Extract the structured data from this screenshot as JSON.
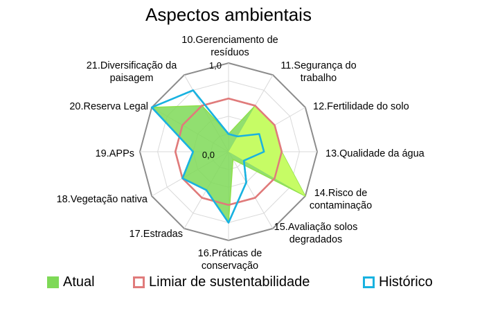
{
  "chart_data": {
    "type": "radar",
    "title": "Aspectos ambientais",
    "categories": [
      "10.Gerenciamento de resíduos",
      "11.Segurança do trabalho",
      "12.Fertilidade do solo",
      "13.Qualidade da água",
      "14.Risco de contaminação",
      "15.Avaliação solos degradados",
      "16.Práticas de conservação",
      "17.Estradas",
      "18.Vegetação nativa",
      "19.APPs",
      "20.Reserva Legal",
      "21.Diversificação da paisagem"
    ],
    "radial_range": [
      0,
      1
    ],
    "tick_labels": [
      "0,0",
      "1,0"
    ],
    "grid_rings": 5,
    "legend_position": "bottom",
    "series": [
      {
        "name": "Atual",
        "values": [
          0.2,
          0.6,
          0.6,
          0.6,
          1.0,
          0.1,
          0.8,
          0.5,
          0.6,
          0.4,
          1.0,
          0.6
        ],
        "fill": "#7ed957",
        "stroke": "#8fe04a",
        "segment_fill": "#ccff66"
      },
      {
        "name": "Limiar de sustentabilidade",
        "values": [
          0.6,
          0.6,
          0.6,
          0.6,
          0.6,
          0.6,
          0.6,
          0.6,
          0.6,
          0.6,
          0.6,
          0.6
        ],
        "fill": "none",
        "stroke": "#e07b7b"
      },
      {
        "name": "Histórico",
        "values": [
          0.2,
          0.2,
          0.4,
          0.4,
          0.2,
          0.4,
          0.8,
          0.5,
          0.6,
          0.4,
          1.0,
          0.8
        ],
        "fill": "none",
        "stroke": "#19b2e0"
      }
    ]
  },
  "legend": {
    "items": [
      {
        "label": "Atual",
        "color": "#7ed957",
        "border": "#7ed957"
      },
      {
        "label": "Limiar de sustentabilidade",
        "color": "#ffffff",
        "border": "#e07b7b"
      },
      {
        "label": "Histórico",
        "color": "#ffffff",
        "border": "#19b2e0"
      }
    ]
  }
}
